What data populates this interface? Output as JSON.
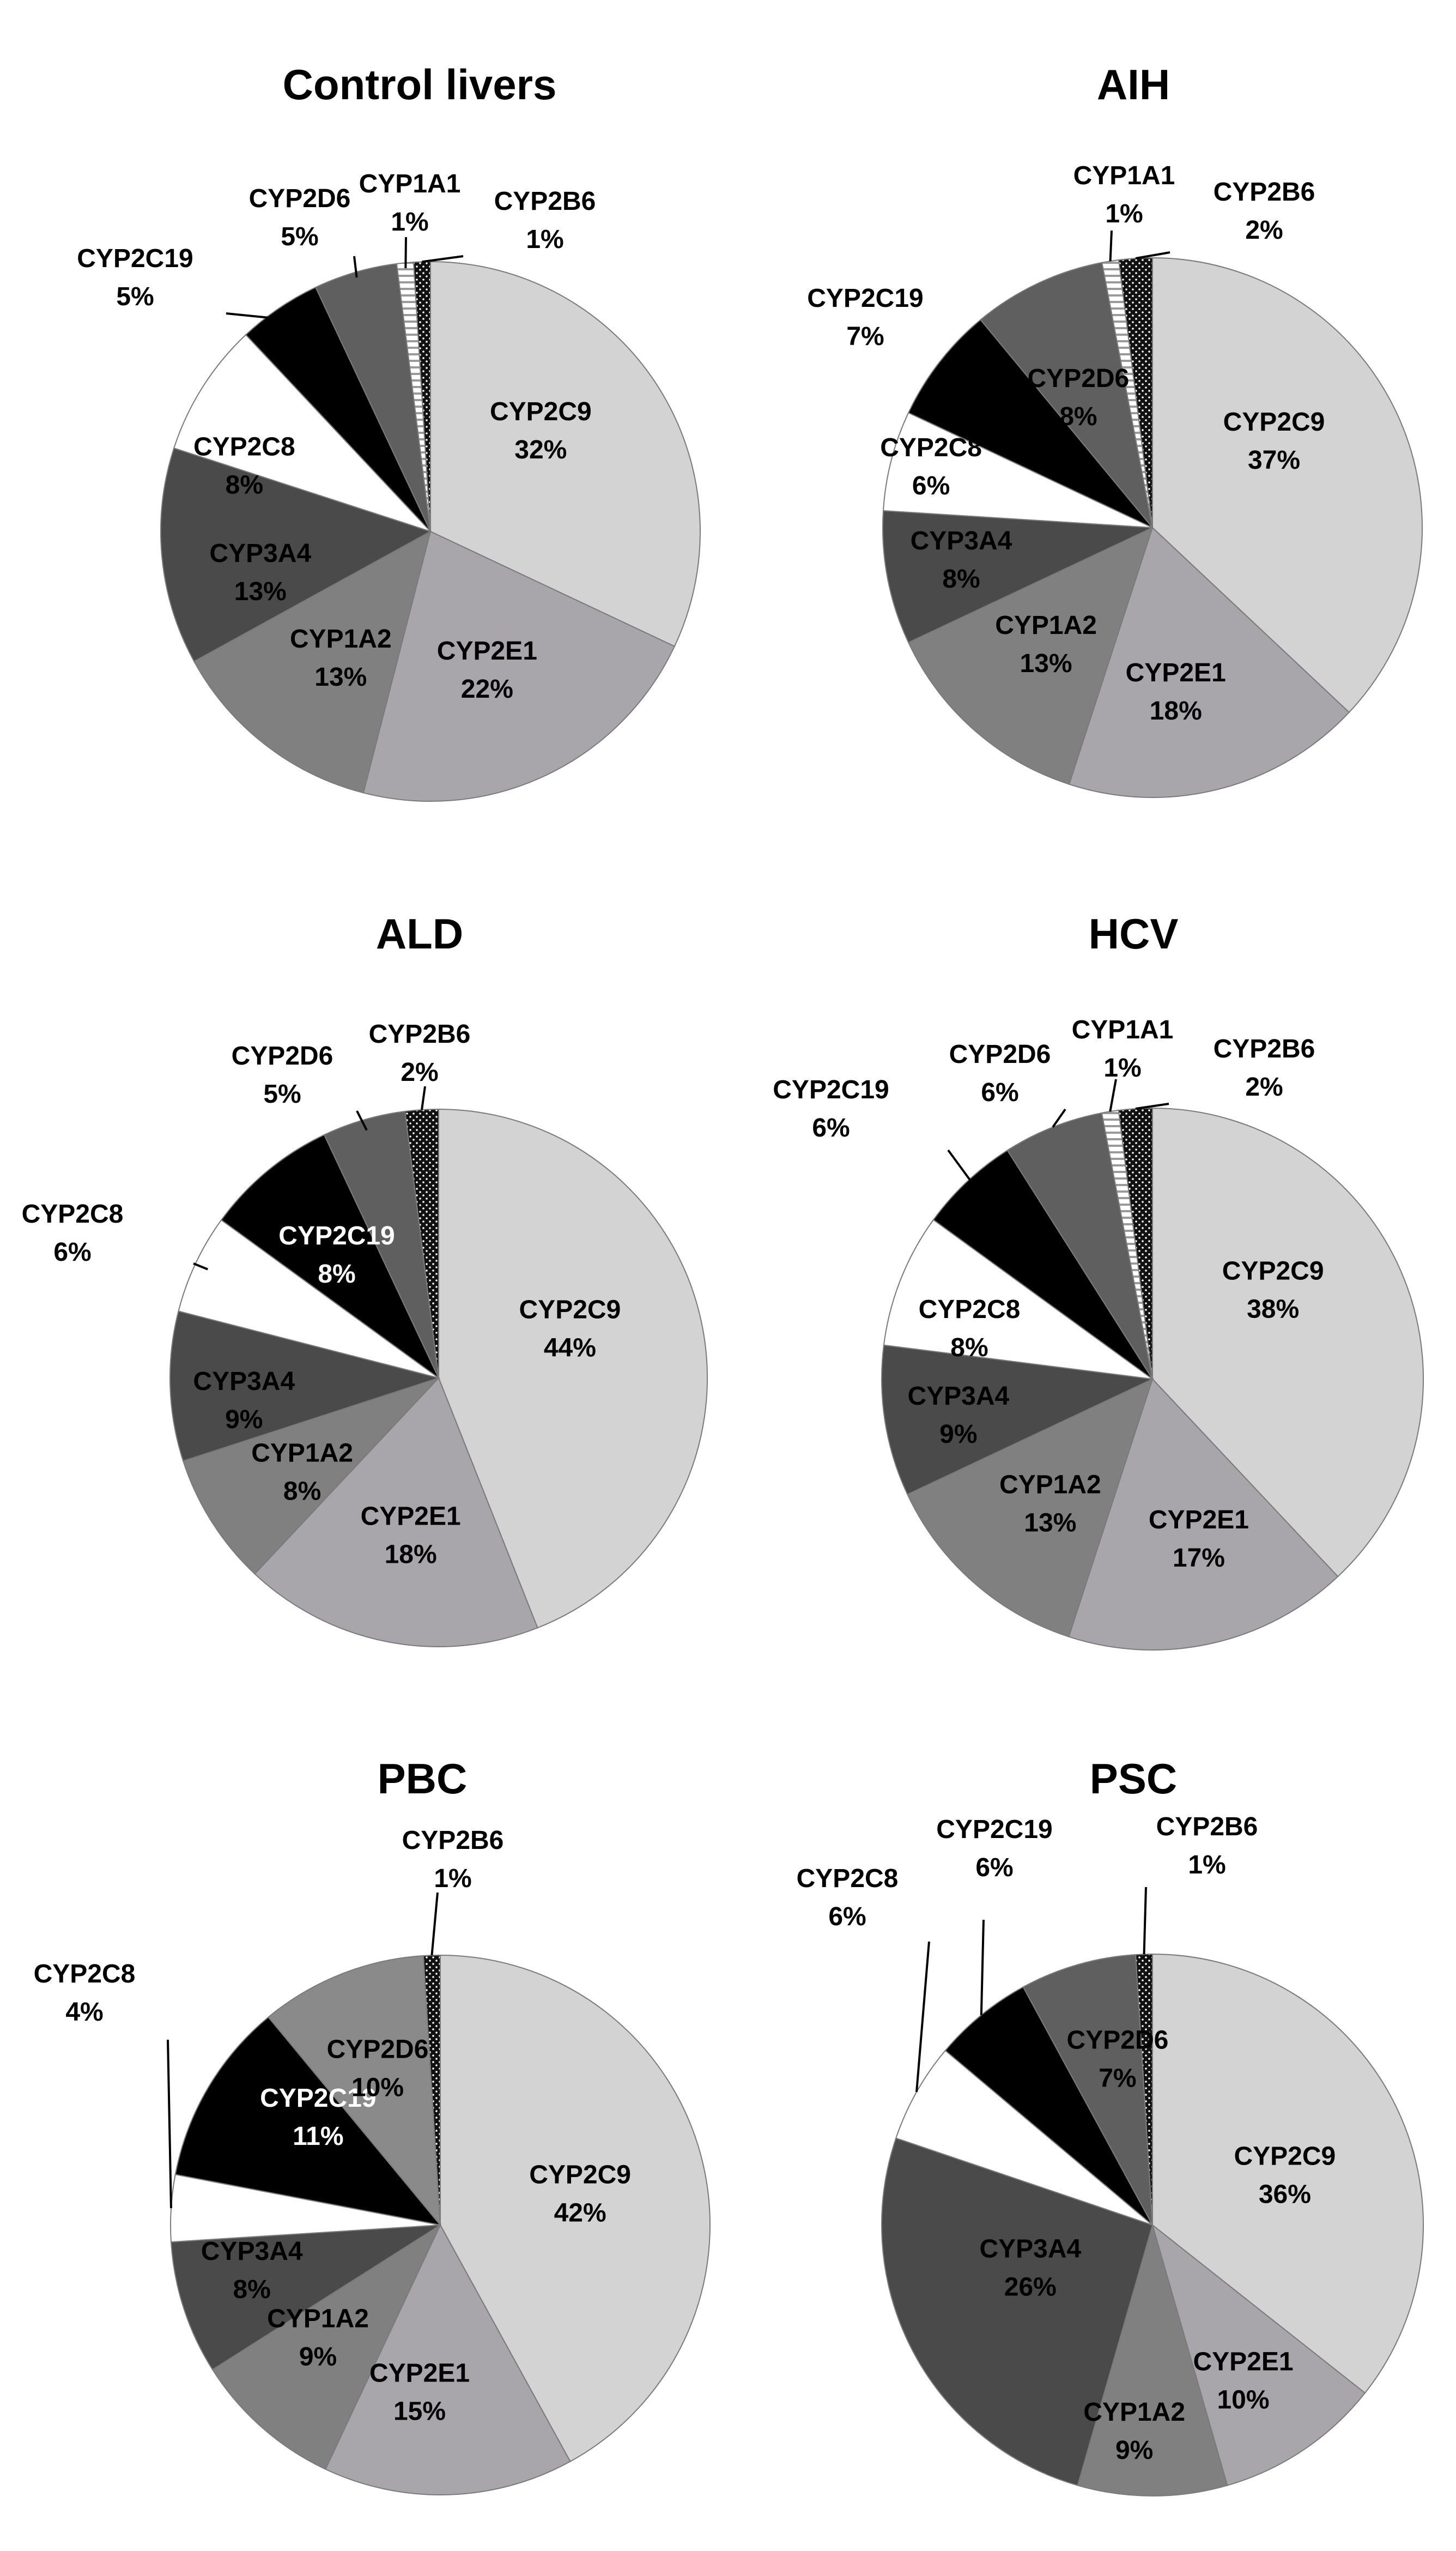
{
  "colors": {
    "CYP2C9": "#d3d3d3",
    "CYP2E1": "#a8a6ab",
    "CYP1A2": "#808080",
    "CYP3A4": "#4a4a4a",
    "CYP2C8": "#ffffff",
    "CYP2C19": "#000000",
    "CYP2D6": "#5f5f5f",
    "CYP2D6_PBC": "#8a8a8a",
    "CYP1A1": "#ffffff",
    "CYP2B6": "#111111",
    "outline": "#7a7a7a"
  },
  "chart_data": [
    {
      "type": "pie",
      "title": "Control livers",
      "slices": [
        {
          "name": "CYP2C9",
          "value": 32,
          "label": "32%"
        },
        {
          "name": "CYP2E1",
          "value": 22,
          "label": "22%"
        },
        {
          "name": "CYP1A2",
          "value": 13,
          "label": "13%"
        },
        {
          "name": "CYP3A4",
          "value": 13,
          "label": "13%"
        },
        {
          "name": "CYP2C8",
          "value": 8,
          "label": "8%"
        },
        {
          "name": "CYP2C19",
          "value": 5,
          "label": "5%"
        },
        {
          "name": "CYP2D6",
          "value": 5,
          "label": "5%"
        },
        {
          "name": "CYP1A1",
          "value": 1,
          "label": "1%"
        },
        {
          "name": "CYP2B6",
          "value": 1,
          "label": "1%"
        }
      ]
    },
    {
      "type": "pie",
      "title": "AIH",
      "slices": [
        {
          "name": "CYP2C9",
          "value": 37,
          "label": "37%"
        },
        {
          "name": "CYP2E1",
          "value": 18,
          "label": "18%"
        },
        {
          "name": "CYP1A2",
          "value": 13,
          "label": "13%"
        },
        {
          "name": "CYP3A4",
          "value": 8,
          "label": "8%"
        },
        {
          "name": "CYP2C8",
          "value": 6,
          "label": "6%"
        },
        {
          "name": "CYP2C19",
          "value": 7,
          "label": "7%"
        },
        {
          "name": "CYP2D6",
          "value": 8,
          "label": "8%"
        },
        {
          "name": "CYP1A1",
          "value": 1,
          "label": "1%"
        },
        {
          "name": "CYP2B6",
          "value": 2,
          "label": "2%"
        }
      ]
    },
    {
      "type": "pie",
      "title": "ALD",
      "slices": [
        {
          "name": "CYP2C9",
          "value": 44,
          "label": "44%"
        },
        {
          "name": "CYP2E1",
          "value": 18,
          "label": "18%"
        },
        {
          "name": "CYP1A2",
          "value": 8,
          "label": "8%"
        },
        {
          "name": "CYP3A4",
          "value": 9,
          "label": "9%"
        },
        {
          "name": "CYP2C8",
          "value": 6,
          "label": "6%"
        },
        {
          "name": "CYP2C19",
          "value": 8,
          "label": "8%"
        },
        {
          "name": "CYP2D6",
          "value": 5,
          "label": "5%"
        },
        {
          "name": "CYP2B6",
          "value": 2,
          "label": "2%"
        }
      ]
    },
    {
      "type": "pie",
      "title": "HCV",
      "slices": [
        {
          "name": "CYP2C9",
          "value": 38,
          "label": "38%"
        },
        {
          "name": "CYP2E1",
          "value": 17,
          "label": "17%"
        },
        {
          "name": "CYP1A2",
          "value": 13,
          "label": "13%"
        },
        {
          "name": "CYP3A4",
          "value": 9,
          "label": "9%"
        },
        {
          "name": "CYP2C8",
          "value": 8,
          "label": "8%"
        },
        {
          "name": "CYP2C19",
          "value": 6,
          "label": "6%"
        },
        {
          "name": "CYP2D6",
          "value": 6,
          "label": "6%"
        },
        {
          "name": "CYP1A1",
          "value": 1,
          "label": "1%"
        },
        {
          "name": "CYP2B6",
          "value": 2,
          "label": "2%"
        }
      ]
    },
    {
      "type": "pie",
      "title": "PBC",
      "slices": [
        {
          "name": "CYP2C9",
          "value": 42,
          "label": "42%"
        },
        {
          "name": "CYP2E1",
          "value": 15,
          "label": "15%"
        },
        {
          "name": "CYP1A2",
          "value": 9,
          "label": "9%"
        },
        {
          "name": "CYP3A4",
          "value": 8,
          "label": "8%"
        },
        {
          "name": "CYP2C8",
          "value": 4,
          "label": "4%"
        },
        {
          "name": "CYP2C19",
          "value": 11,
          "label": "11%"
        },
        {
          "name": "CYP2D6",
          "value": 10,
          "label": "10%"
        },
        {
          "name": "CYP2B6",
          "value": 1,
          "label": "1%"
        }
      ]
    },
    {
      "type": "pie",
      "title": "PSC",
      "slices": [
        {
          "name": "CYP2C9",
          "value": 36,
          "label": "36%"
        },
        {
          "name": "CYP2E1",
          "value": 10,
          "label": "10%"
        },
        {
          "name": "CYP1A2",
          "value": 9,
          "label": "9%"
        },
        {
          "name": "CYP3A4",
          "value": 26,
          "label": "26%"
        },
        {
          "name": "CYP2C8",
          "value": 6,
          "label": "6%"
        },
        {
          "name": "CYP2C19",
          "value": 6,
          "label": "6%"
        },
        {
          "name": "CYP2D6",
          "value": 7,
          "label": "7%"
        },
        {
          "name": "CYP2B6",
          "value": 1,
          "label": "1%"
        }
      ]
    }
  ]
}
